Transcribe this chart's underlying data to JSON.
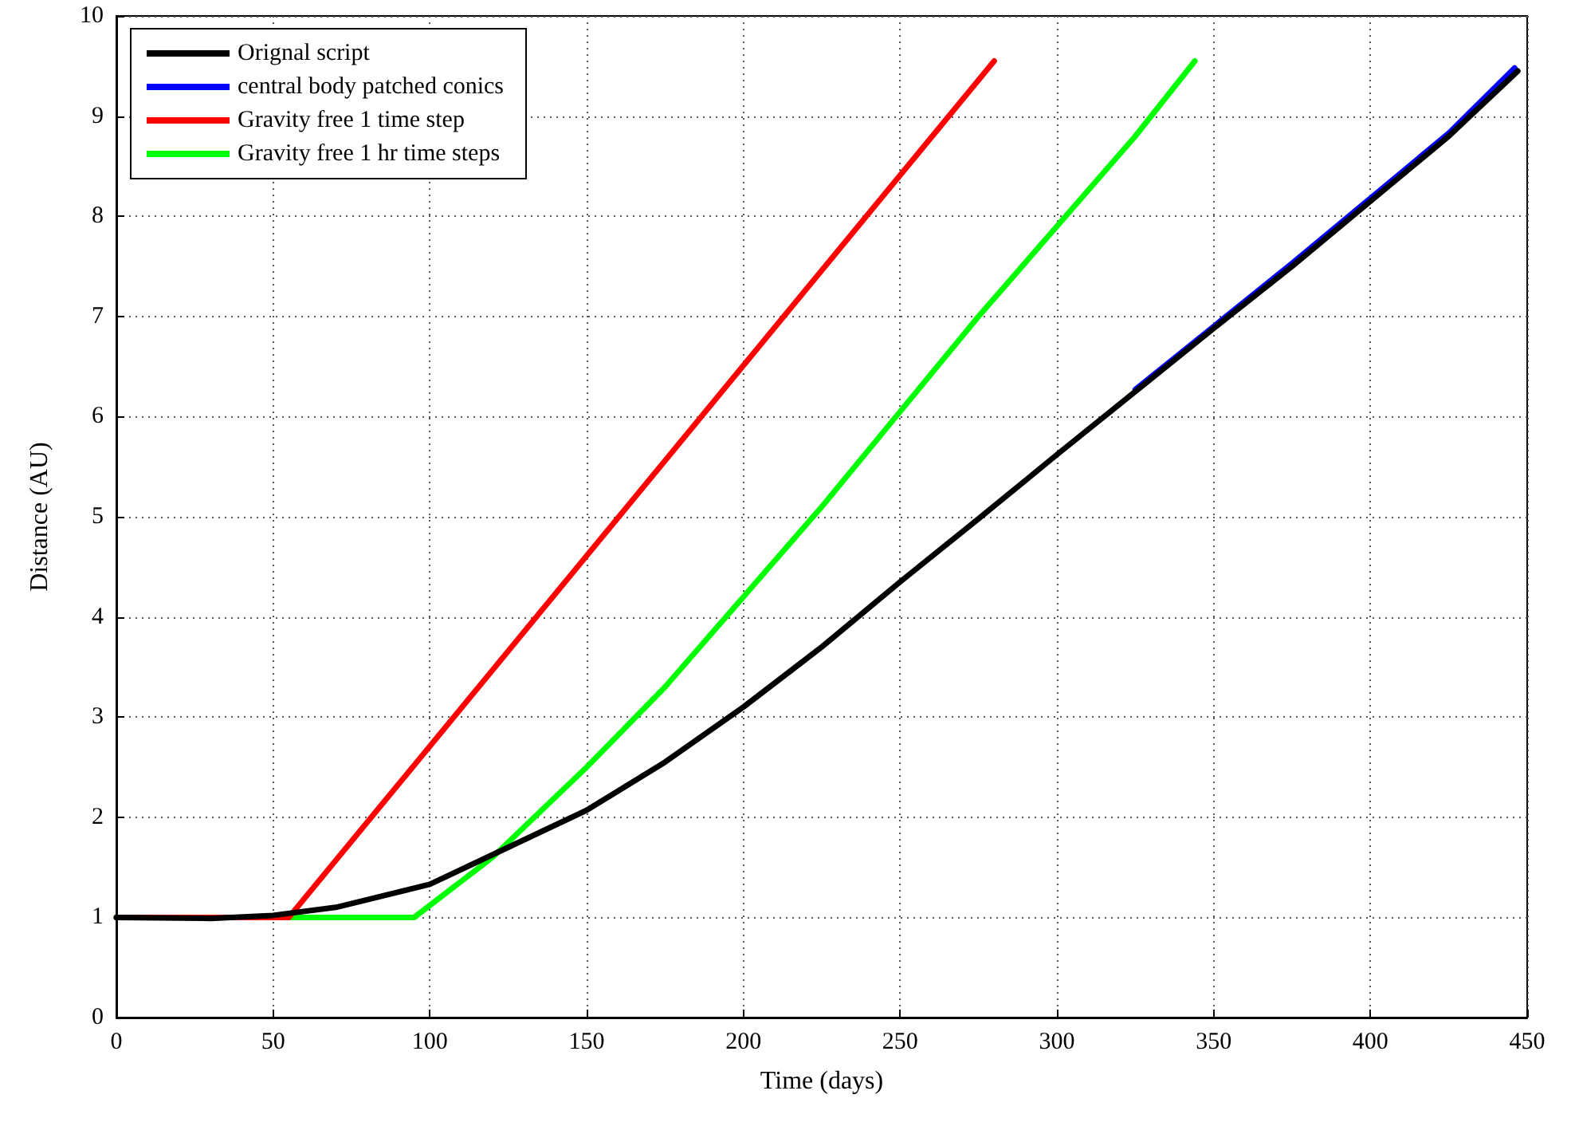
{
  "chart_data": {
    "type": "line",
    "xlabel": "Time (days)",
    "ylabel": "Distance (AU)",
    "xlim": [
      0,
      450
    ],
    "xticks": [
      0,
      50,
      100,
      150,
      200,
      250,
      300,
      350,
      400,
      450
    ],
    "ylim": [
      0,
      10
    ],
    "yticks": [
      0,
      1,
      2,
      3,
      4,
      5,
      6,
      7,
      8,
      9,
      10
    ],
    "grid": true,
    "legend": "top left",
    "marker": "none",
    "line_style": "solid",
    "series": [
      {
        "name": "Orignal script",
        "color": "#000000",
        "x": [
          0,
          30,
          50,
          70,
          100,
          125,
          150,
          175,
          200,
          225,
          250,
          275,
          300,
          325,
          350,
          375,
          400,
          425,
          447
        ],
        "values": [
          1,
          0.99,
          1.02,
          1.1,
          1.33,
          1.7,
          2.07,
          2.55,
          3.1,
          3.7,
          4.35,
          4.98,
          5.62,
          6.25,
          6.88,
          7.5,
          8.15,
          8.8,
          9.45
        ]
      },
      {
        "name": "central body patched conics",
        "color": "#0000ff",
        "x": [
          325,
          350,
          375,
          400,
          425,
          446
        ],
        "values": [
          6.27,
          6.9,
          7.53,
          8.18,
          8.83,
          9.48
        ]
      },
      {
        "name": "Gravity free 1 time step",
        "color": "#ff0000",
        "x": [
          0,
          55,
          280
        ],
        "values": [
          1,
          1,
          9.55
        ]
      },
      {
        "name": "Gravity free 1 hr time steps",
        "color": "#00ff00",
        "x": [
          0,
          95,
          120,
          150,
          175,
          200,
          225,
          250,
          275,
          300,
          325,
          344
        ],
        "values": [
          1,
          1,
          1.6,
          2.5,
          3.3,
          4.2,
          5.1,
          6.05,
          7.0,
          7.9,
          8.8,
          9.55
        ]
      }
    ]
  }
}
